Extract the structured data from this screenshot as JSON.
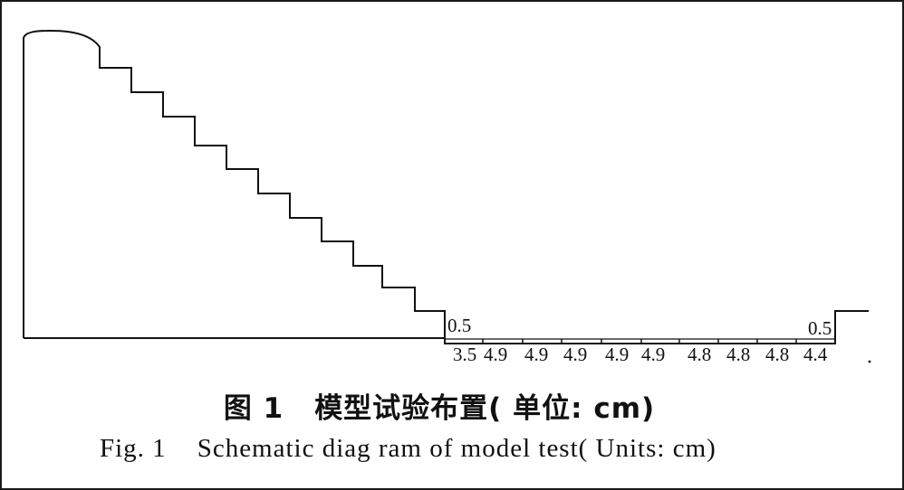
{
  "diagram": {
    "gap_labels": [
      "0.5",
      "0.5"
    ],
    "segment_labels": [
      "3.5",
      "4.9",
      "4.9",
      "4.9",
      "4.9",
      "4.9",
      "4.8",
      "4.8",
      "4.8",
      "4.4"
    ],
    "line_color": "#111111",
    "steps": 11
  },
  "caption": {
    "cn_fig_no": "图 1",
    "cn_title": "模型试验布置( 单位: cm)",
    "en_fig_no": "Fig. 1",
    "en_title": "Schematic diag ram of model test( Units: cm)"
  }
}
